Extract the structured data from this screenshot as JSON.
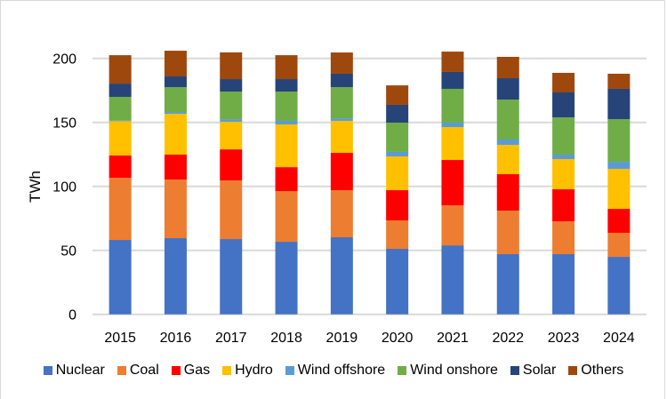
{
  "chart_data": {
    "type": "bar",
    "stacked": true,
    "title": "",
    "xlabel": "",
    "ylabel": "TWh",
    "ylim": [
      0,
      200
    ],
    "yticks": [
      0,
      50,
      100,
      150,
      200
    ],
    "grid": true,
    "legend_position": "bottom",
    "categories": [
      "2015",
      "2016",
      "2017",
      "2018",
      "2019",
      "2020",
      "2021",
      "2022",
      "2023",
      "2024"
    ],
    "series": [
      {
        "name": "Nuclear",
        "color": "#4472C4",
        "values": [
          58.1,
          59.5,
          58.8,
          56.7,
          60.2,
          51.2,
          53.9,
          47.0,
          47.0,
          44.9
        ]
      },
      {
        "name": "Coal",
        "color": "#ED7D31",
        "values": [
          48.6,
          45.8,
          45.8,
          39.6,
          36.8,
          22.2,
          31.3,
          34.0,
          25.7,
          18.8
        ]
      },
      {
        "name": "Gas",
        "color": "#FF0000",
        "values": [
          17.4,
          19.5,
          24.3,
          18.7,
          29.2,
          23.6,
          35.4,
          28.5,
          25.0,
          18.7
        ]
      },
      {
        "name": "Hydro",
        "color": "#FFC000",
        "values": [
          26.8,
          31.9,
          21.6,
          33.4,
          25.0,
          26.4,
          25.7,
          22.9,
          23.6,
          31.3
        ]
      },
      {
        "name": "Wind offshore",
        "color": "#5B9BD5",
        "values": [
          0.5,
          1.4,
          2.0,
          2.8,
          2.0,
          3.5,
          3.5,
          4.2,
          3.5,
          5.5
        ]
      },
      {
        "name": "Wind onshore",
        "color": "#70AD47",
        "values": [
          18.5,
          19.4,
          21.6,
          22.9,
          24.3,
          22.9,
          26.4,
          31.2,
          29.1,
          33.3
        ]
      },
      {
        "name": "Solar",
        "color": "#264478",
        "values": [
          10.4,
          8.4,
          9.7,
          9.7,
          10.5,
          13.9,
          13.2,
          16.7,
          19.5,
          23.7
        ]
      },
      {
        "name": "Others",
        "color": "#9E480E",
        "values": [
          22.2,
          20.1,
          20.9,
          18.7,
          16.6,
          15.2,
          15.9,
          16.7,
          15.3,
          11.8
        ]
      }
    ]
  }
}
